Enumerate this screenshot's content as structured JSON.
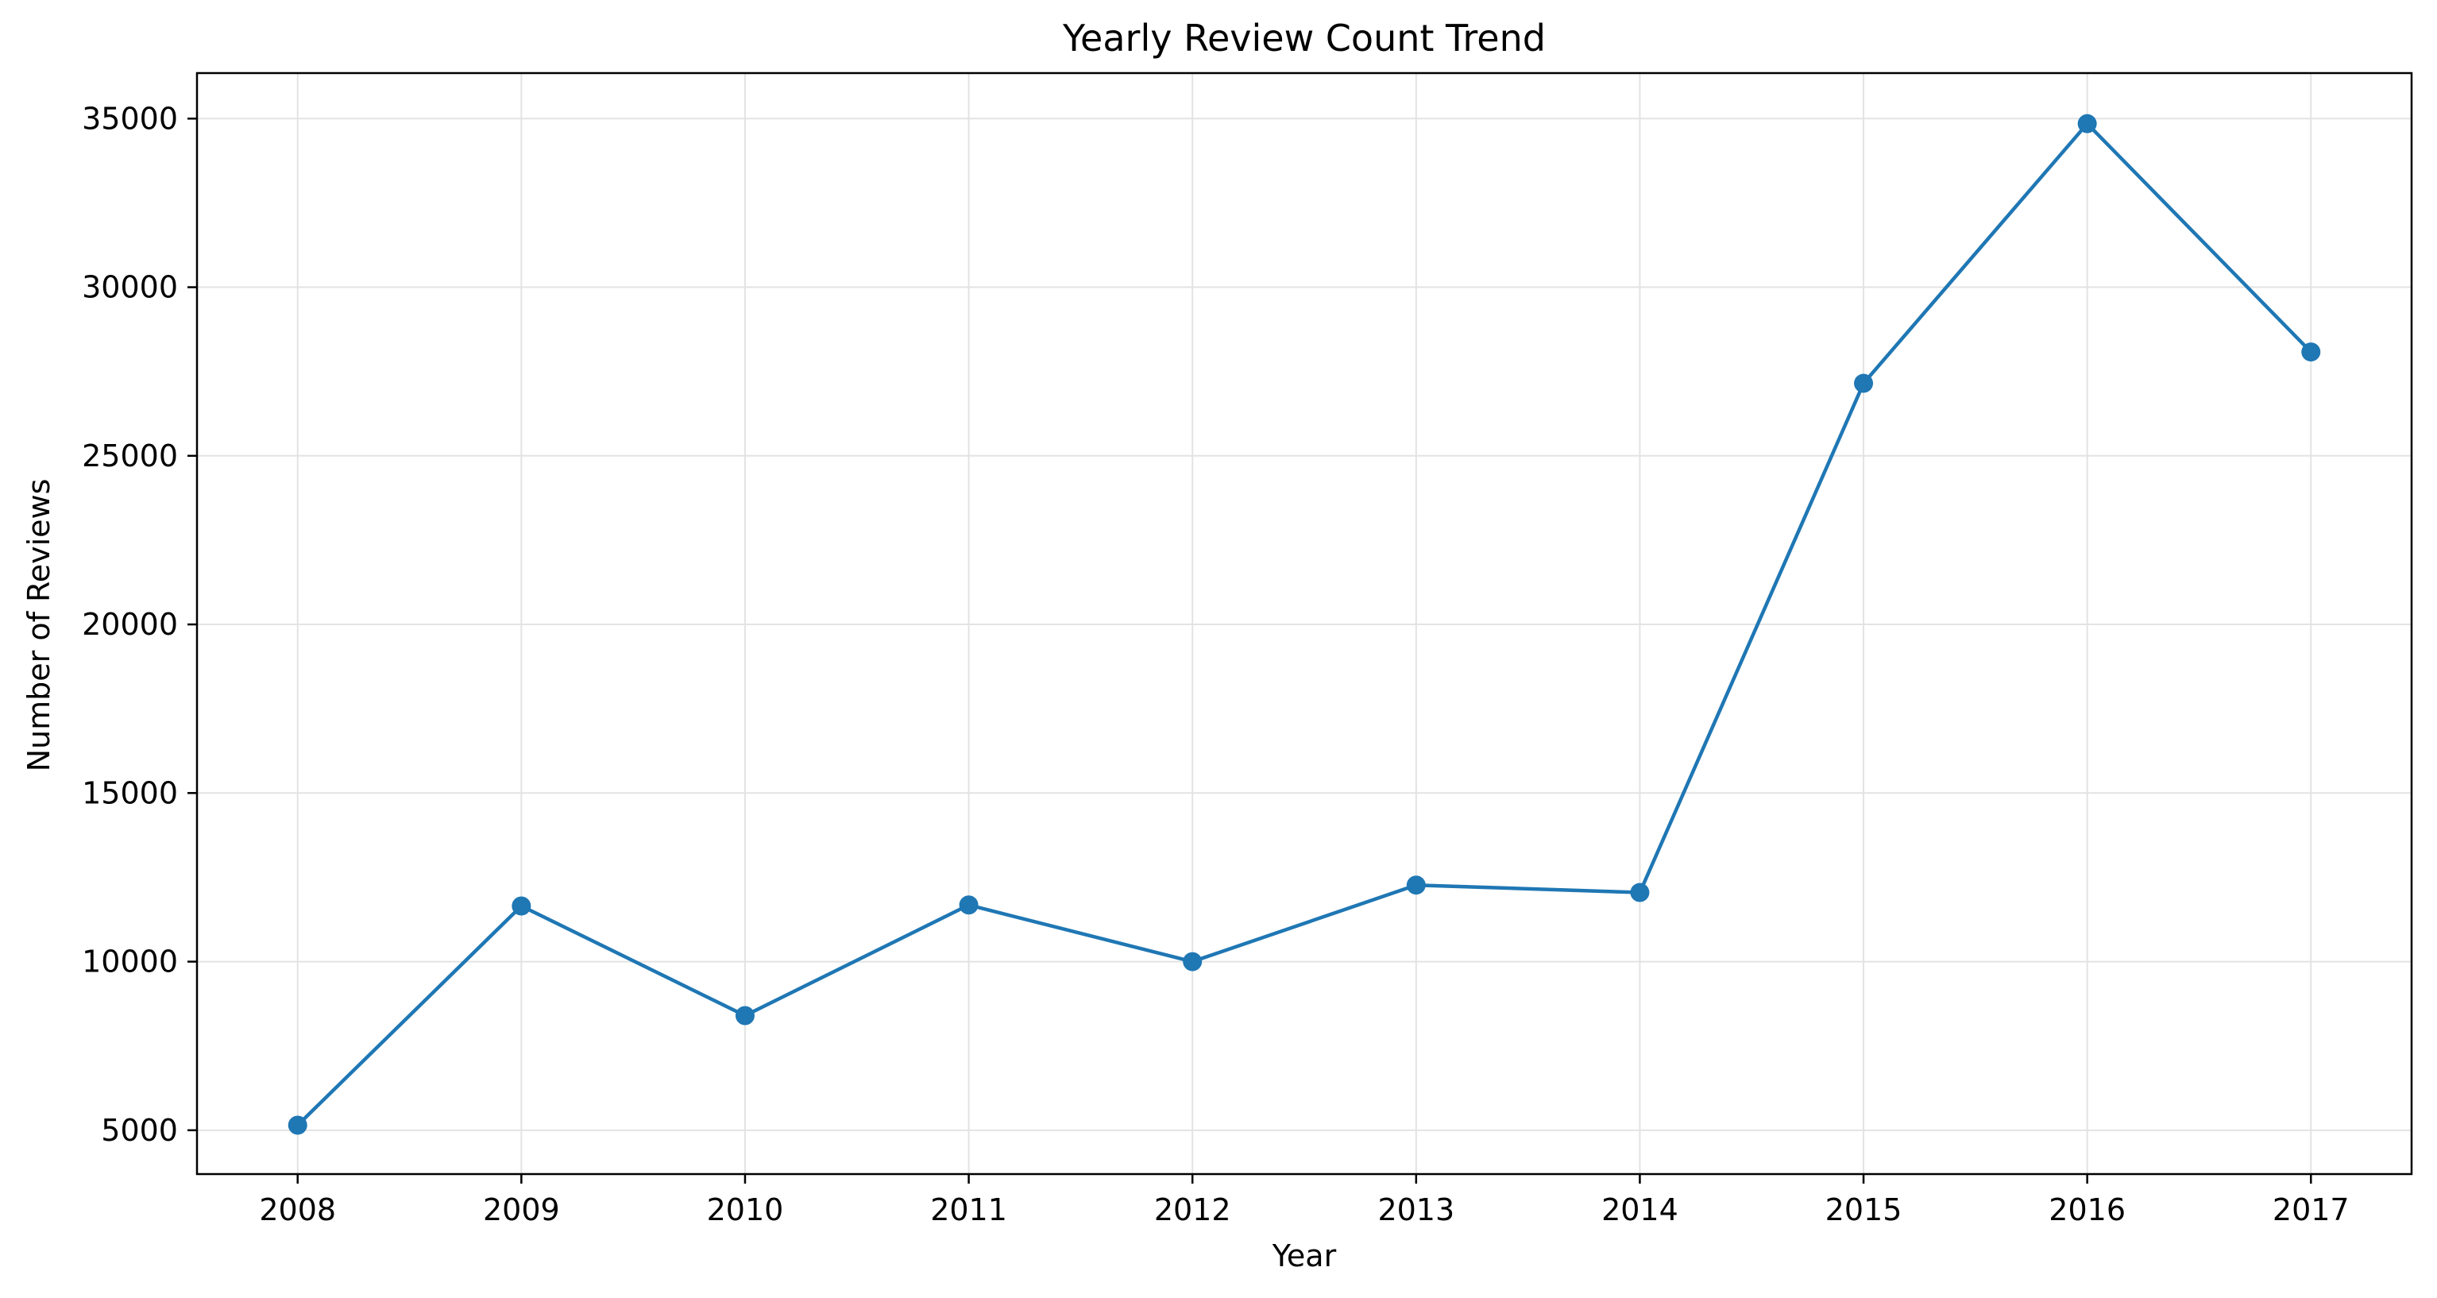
{
  "chart_data": {
    "type": "line",
    "title": "Yearly Review Count Trend",
    "xlabel": "Year",
    "ylabel": "Number of Reviews",
    "x": [
      "2008",
      "2009",
      "2010",
      "2011",
      "2012",
      "2013",
      "2014",
      "2015",
      "2016",
      "2017"
    ],
    "series": [
      {
        "values": [
          5150,
          11650,
          8400,
          11680,
          10000,
          12270,
          12050,
          27150,
          34850,
          28080
        ]
      }
    ],
    "ylim": [
      3700,
      36350
    ],
    "yticks": [
      5000,
      10000,
      15000,
      20000,
      25000,
      30000,
      35000
    ],
    "grid": true,
    "legend": "none",
    "markers": true,
    "colors": {
      "line": "#1f77b4",
      "grid": "#e3e3e3",
      "axes": "#000000"
    }
  }
}
